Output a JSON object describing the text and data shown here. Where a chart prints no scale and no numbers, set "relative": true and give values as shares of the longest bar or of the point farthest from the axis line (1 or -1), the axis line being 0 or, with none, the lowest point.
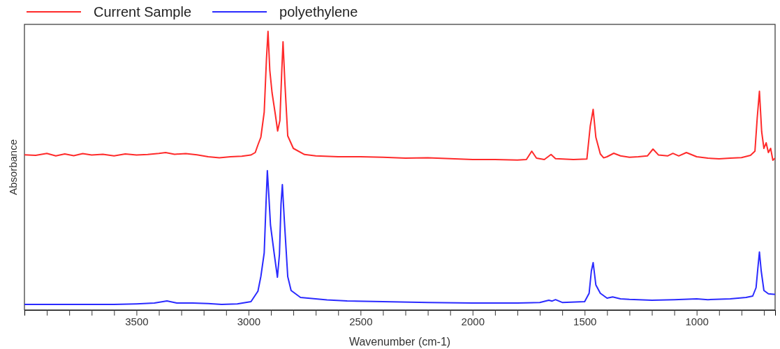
{
  "chart_data": {
    "type": "line",
    "xlabel": "Wavenumber (cm-1)",
    "ylabel": "Absorbance",
    "relative": true,
    "legend": "top left",
    "grid": false,
    "marker": "none",
    "line_style": "solid",
    "xlim": [
      4000,
      650
    ],
    "xticks": [
      {
        "value": 3900,
        "label": null
      },
      {
        "value": 3800,
        "label": null
      },
      {
        "value": 3700,
        "label": null
      },
      {
        "value": 3600,
        "label": null
      },
      3500,
      {
        "value": 3400,
        "label": null
      },
      {
        "value": 3300,
        "label": null
      },
      {
        "value": 3200,
        "label": null
      },
      {
        "value": 3100,
        "label": null
      },
      3000,
      {
        "value": 2900,
        "label": null
      },
      {
        "value": 2800,
        "label": null
      },
      {
        "value": 2700,
        "label": null
      },
      {
        "value": 2600,
        "label": null
      },
      2500,
      {
        "value": 2400,
        "label": null
      },
      {
        "value": 2300,
        "label": null
      },
      {
        "value": 2200,
        "label": null
      },
      {
        "value": 2100,
        "label": null
      },
      2000,
      {
        "value": 1900,
        "label": null
      },
      {
        "value": 1800,
        "label": null
      },
      {
        "value": 1700,
        "label": null
      },
      {
        "value": 1600,
        "label": null
      },
      1500,
      {
        "value": 1400,
        "label": null
      },
      {
        "value": 1300,
        "label": null
      },
      {
        "value": 1200,
        "label": null
      },
      {
        "value": 1100,
        "label": null
      },
      1000,
      {
        "value": 900,
        "label": null
      },
      {
        "value": 800,
        "label": null
      },
      {
        "value": 700,
        "label": null
      }
    ],
    "series": [
      {
        "name": "Current Sample",
        "color": "#ff2a2a",
        "x": [
          4000,
          3950,
          3900,
          3860,
          3820,
          3780,
          3740,
          3700,
          3650,
          3600,
          3550,
          3500,
          3450,
          3400,
          3370,
          3330,
          3280,
          3230,
          3180,
          3130,
          3080,
          3030,
          2990,
          2970,
          2958,
          2945,
          2930,
          2920,
          2913,
          2905,
          2895,
          2880,
          2870,
          2860,
          2852,
          2846,
          2838,
          2825,
          2800,
          2750,
          2700,
          2600,
          2500,
          2400,
          2300,
          2200,
          2100,
          2000,
          1900,
          1800,
          1760,
          1736,
          1715,
          1680,
          1650,
          1630,
          1550,
          1490,
          1475,
          1462,
          1450,
          1430,
          1415,
          1400,
          1370,
          1340,
          1300,
          1260,
          1220,
          1195,
          1170,
          1130,
          1106,
          1080,
          1046,
          1000,
          950,
          900,
          850,
          800,
          760,
          740,
          730,
          720,
          710,
          700,
          690,
          680,
          670,
          660,
          650
        ],
        "values": [
          0.557,
          0.555,
          0.562,
          0.553,
          0.56,
          0.554,
          0.561,
          0.556,
          0.559,
          0.553,
          0.56,
          0.556,
          0.558,
          0.562,
          0.565,
          0.559,
          0.561,
          0.557,
          0.55,
          0.546,
          0.55,
          0.552,
          0.556,
          0.565,
          0.5925,
          0.62,
          0.71,
          0.9,
          1.0,
          0.86,
          0.78,
          0.7,
          0.6425,
          0.68,
          0.85,
          0.9625,
          0.82,
          0.625,
          0.58,
          0.558,
          0.553,
          0.55,
          0.55,
          0.548,
          0.545,
          0.546,
          0.543,
          0.54,
          0.54,
          0.538,
          0.54,
          0.57,
          0.545,
          0.54,
          0.558,
          0.543,
          0.54,
          0.542,
          0.66,
          0.72,
          0.62,
          0.56,
          0.546,
          0.55,
          0.5625,
          0.553,
          0.548,
          0.55,
          0.553,
          0.5775,
          0.556,
          0.553,
          0.562,
          0.553,
          0.565,
          0.55,
          0.545,
          0.5425,
          0.545,
          0.547,
          0.555,
          0.57,
          0.6875,
          0.785,
          0.64,
          0.58,
          0.6,
          0.565,
          0.58,
          0.5375,
          0.545
        ]
      },
      {
        "name": "polyethylene",
        "color": "#2a2aff",
        "x": [
          4000,
          3800,
          3600,
          3500,
          3420,
          3364,
          3320,
          3250,
          3180,
          3120,
          3050,
          2989,
          2958,
          2945,
          2930,
          2922,
          2916,
          2910,
          2902,
          2885,
          2871,
          2862,
          2855,
          2849,
          2840,
          2825,
          2810,
          2768,
          2650,
          2560,
          2400,
          2200,
          2000,
          1800,
          1700,
          1660,
          1645,
          1630,
          1600,
          1500,
          1480,
          1470,
          1462,
          1450,
          1430,
          1400,
          1375,
          1340,
          1300,
          1200,
          1100,
          1000,
          950,
          850,
          780,
          750,
          735,
          727,
          720,
          712,
          700,
          680,
          655,
          650
        ],
        "values": [
          0.02,
          0.02,
          0.02,
          0.022,
          0.025,
          0.0325,
          0.025,
          0.025,
          0.023,
          0.02,
          0.022,
          0.03,
          0.0675,
          0.12,
          0.205,
          0.38,
          0.5,
          0.42,
          0.305,
          0.2,
          0.1175,
          0.2,
          0.38,
          0.45,
          0.32,
          0.12,
          0.07,
          0.045,
          0.036,
          0.0325,
          0.03,
          0.027,
          0.025,
          0.025,
          0.027,
          0.035,
          0.032,
          0.037,
          0.027,
          0.03,
          0.06,
          0.14,
          0.17,
          0.09,
          0.06,
          0.0425,
          0.047,
          0.04,
          0.038,
          0.035,
          0.037,
          0.04,
          0.037,
          0.04,
          0.045,
          0.05,
          0.08,
          0.15,
          0.208,
          0.14,
          0.07,
          0.058,
          0.056,
          0.056
        ]
      }
    ]
  }
}
